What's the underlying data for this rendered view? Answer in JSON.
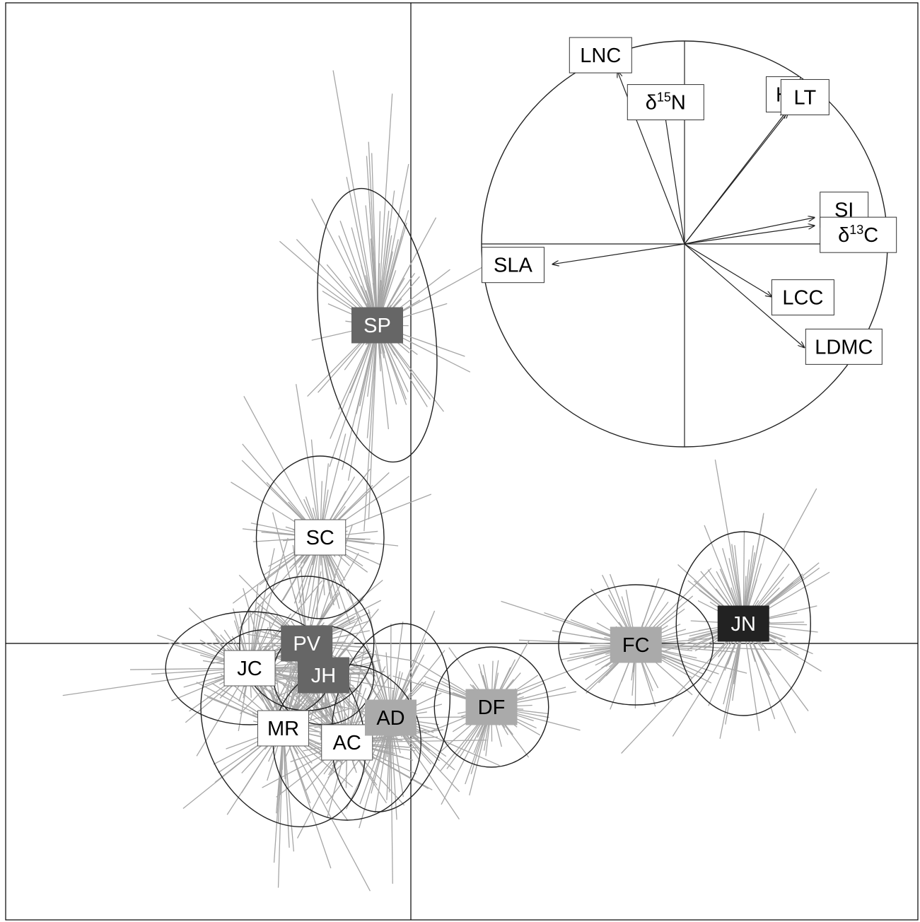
{
  "chart_data": {
    "type": "scatter",
    "title": "",
    "xlabel": "",
    "ylabel": "",
    "axes": {
      "cross_at_origin": true,
      "grid": false,
      "ticks": false
    },
    "groups": [
      {
        "label": "SP",
        "center": [
          -0.5,
          4.5
        ],
        "ellipse": {
          "rx": 0.85,
          "ry": 1.95,
          "rot": -8
        },
        "fill": "#666666",
        "text": "#ffffff",
        "n": 110,
        "spread": [
          0.55,
          1.3
        ]
      },
      {
        "label": "SC",
        "center": [
          -1.35,
          1.5
        ],
        "ellipse": {
          "rx": 0.95,
          "ry": 1.15,
          "rot": 0
        },
        "fill": "#ffffff",
        "text": "#000000",
        "n": 90,
        "spread": [
          0.6,
          0.7
        ]
      },
      {
        "label": "PV",
        "center": [
          -1.55,
          0.0
        ],
        "ellipse": {
          "rx": 1.0,
          "ry": 0.95,
          "rot": 0
        },
        "fill": "#666666",
        "text": "#ffffff",
        "n": 90,
        "spread": [
          0.6,
          0.6
        ]
      },
      {
        "label": "JH",
        "center": [
          -1.3,
          -0.45
        ],
        "ellipse": {
          "rx": 0.75,
          "ry": 0.7,
          "rot": 0
        },
        "fill": "#666666",
        "text": "#ffffff",
        "n": 80,
        "spread": [
          0.5,
          0.5
        ]
      },
      {
        "label": "JC",
        "center": [
          -2.4,
          -0.35
        ],
        "ellipse": {
          "rx": 1.25,
          "ry": 0.8,
          "rot": 0
        },
        "fill": "#ffffff",
        "text": "#000000",
        "n": 90,
        "spread": [
          0.8,
          0.55
        ]
      },
      {
        "label": "MR",
        "center": [
          -1.9,
          -1.2
        ],
        "ellipse": {
          "rx": 1.15,
          "ry": 1.45,
          "rot": -25
        },
        "fill": "#ffffff",
        "text": "#000000",
        "n": 90,
        "spread": [
          0.7,
          0.9
        ]
      },
      {
        "label": "AC",
        "center": [
          -0.95,
          -1.4
        ],
        "ellipse": {
          "rx": 1.1,
          "ry": 1.1,
          "rot": 0
        },
        "fill": "#ffffff",
        "text": "#000000",
        "n": 90,
        "spread": [
          0.65,
          0.65
        ]
      },
      {
        "label": "AD",
        "center": [
          -0.3,
          -1.05
        ],
        "ellipse": {
          "rx": 0.85,
          "ry": 1.35,
          "rot": 12
        },
        "fill": "#aaaaaa",
        "text": "#000000",
        "n": 90,
        "spread": [
          0.55,
          0.8
        ]
      },
      {
        "label": "DF",
        "center": [
          1.2,
          -0.9
        ],
        "ellipse": {
          "rx": 0.85,
          "ry": 0.85,
          "rot": 0
        },
        "fill": "#aaaaaa",
        "text": "#000000",
        "n": 80,
        "spread": [
          0.55,
          0.55
        ]
      },
      {
        "label": "FC",
        "center": [
          3.35,
          -0.02
        ],
        "ellipse": {
          "rx": 1.15,
          "ry": 0.85,
          "rot": 0
        },
        "fill": "#aaaaaa",
        "text": "#000000",
        "n": 90,
        "spread": [
          0.75,
          0.55
        ]
      },
      {
        "label": "JN",
        "center": [
          4.95,
          0.28
        ],
        "ellipse": {
          "rx": 1.0,
          "ry": 1.3,
          "rot": 0
        },
        "fill": "#222222",
        "text": "#ffffff",
        "n": 100,
        "spread": [
          0.65,
          0.8
        ]
      }
    ],
    "correlation_circle": {
      "radius": 1.0,
      "variables": [
        {
          "label": "LNC",
          "x": -0.33,
          "y": 0.85
        },
        {
          "label": "δ15N",
          "label_base": "δ",
          "label_sup": "15",
          "label_end": "N",
          "x": -0.1,
          "y": 0.66
        },
        {
          "label": "H",
          "x": 0.5,
          "y": 0.65
        },
        {
          "label": "LT",
          "x": 0.51,
          "y": 0.65
        },
        {
          "label": "SI",
          "x": 0.64,
          "y": 0.13
        },
        {
          "label": "δ13C",
          "label_base": "δ",
          "label_sup": "13",
          "label_end": "C",
          "x": 0.64,
          "y": 0.09
        },
        {
          "label": "SLA",
          "x": -0.65,
          "y": -0.1
        },
        {
          "label": "LCC",
          "x": 0.43,
          "y": -0.26
        },
        {
          "label": "LDMC",
          "x": 0.59,
          "y": -0.51
        }
      ]
    }
  }
}
